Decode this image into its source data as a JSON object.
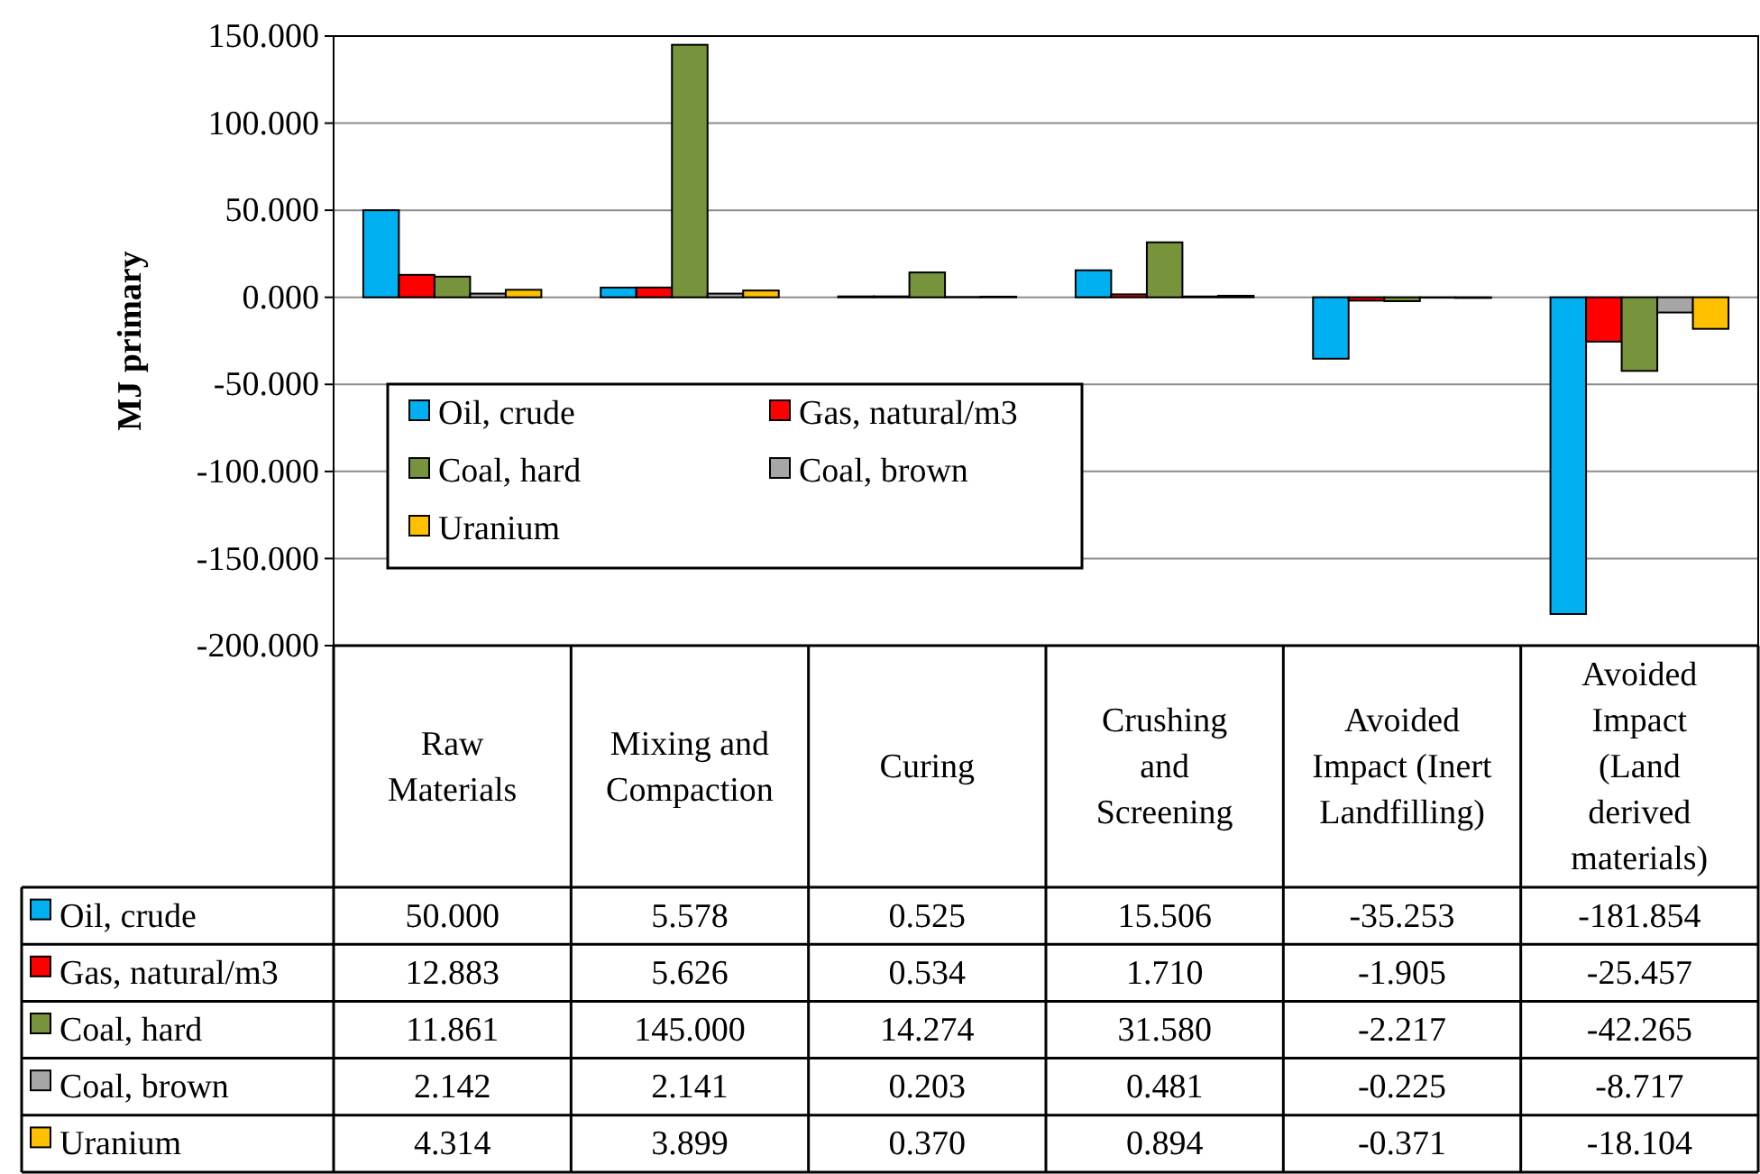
{
  "chart_data": {
    "type": "bar",
    "ylabel": "MJ primary",
    "categories": [
      "Raw Materials",
      "Mixing and Compaction",
      "Curing",
      "Crushing and Screening",
      "Avoided Impact (Inert Landfilling)",
      "Avoided Impact (Land derived materials)"
    ],
    "series": [
      {
        "name": "Oil, crude",
        "color": "#00b0f0",
        "values": [
          50.0,
          5.578,
          0.525,
          15.506,
          -35.253,
          -181.854
        ],
        "value_labels": [
          "50.000",
          "5.578",
          "0.525",
          "15.506",
          "-35.253",
          "-181.854"
        ]
      },
      {
        "name": "Gas, natural/m3",
        "color": "#ff0000",
        "values": [
          12.883,
          5.626,
          0.534,
          1.71,
          -1.905,
          -25.457
        ],
        "value_labels": [
          "12.883",
          "5.626",
          "0.534",
          "1.710",
          "-1.905",
          "-25.457"
        ]
      },
      {
        "name": "Coal, hard",
        "color": "#77933c",
        "values": [
          11.861,
          145.0,
          14.274,
          31.58,
          -2.217,
          -42.265
        ],
        "value_labels": [
          "11.861",
          "145.000",
          "14.274",
          "31.580",
          "-2.217",
          "-42.265"
        ]
      },
      {
        "name": "Coal, brown",
        "color": "#a6a6a6",
        "values": [
          2.142,
          2.141,
          0.203,
          0.481,
          -0.225,
          -8.717
        ],
        "value_labels": [
          "2.142",
          "2.141",
          "0.203",
          "0.481",
          "-0.225",
          "-8.717"
        ]
      },
      {
        "name": "Uranium",
        "color": "#ffc000",
        "values": [
          4.314,
          3.899,
          0.37,
          0.894,
          -0.371,
          -18.104
        ],
        "value_labels": [
          "4.314",
          "3.899",
          "0.370",
          "0.894",
          "-0.371",
          "-18.104"
        ]
      }
    ],
    "ylim": [
      -200,
      150
    ],
    "yticks": [
      {
        "value": -200,
        "label": "-200.000"
      },
      {
        "value": -150,
        "label": "-150.000"
      },
      {
        "value": -100,
        "label": "-100.000"
      },
      {
        "value": -50,
        "label": "-50.000"
      },
      {
        "value": 0,
        "label": "0.000"
      },
      {
        "value": 50,
        "label": "50.000"
      },
      {
        "value": 100,
        "label": "100.000"
      },
      {
        "value": 150,
        "label": "150.000"
      }
    ],
    "grid": "y",
    "legend": "left"
  }
}
